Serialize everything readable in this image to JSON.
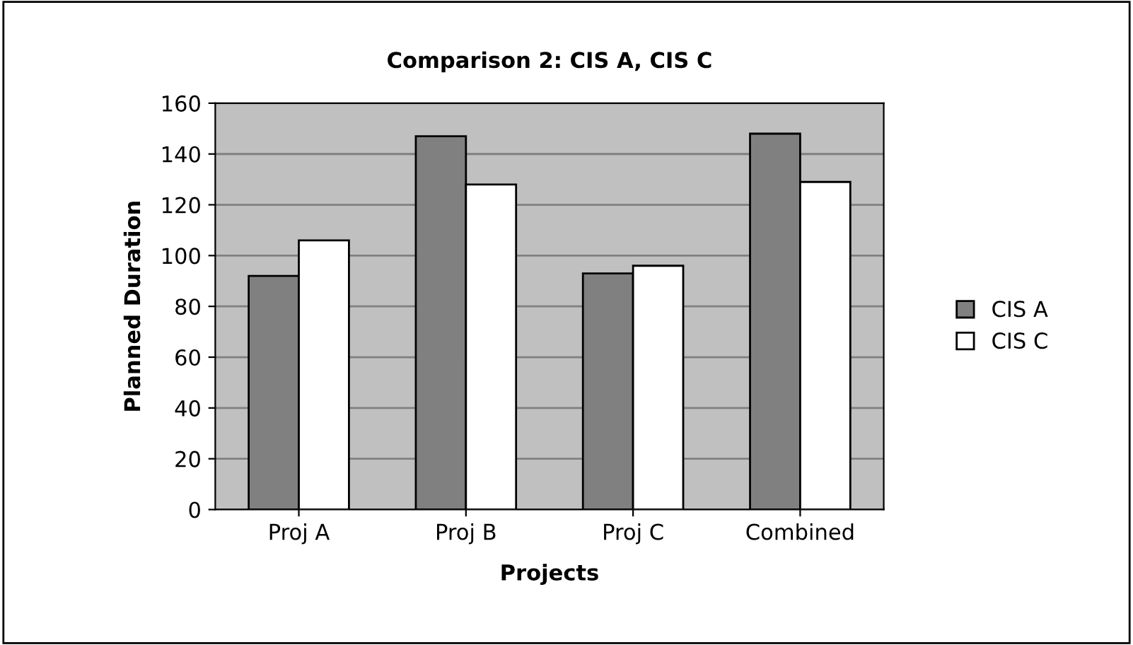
{
  "chart_data": {
    "type": "bar",
    "title": "Comparison 2: CIS A, CIS C",
    "xlabel": "Projects",
    "ylabel": "Planned Duration",
    "categories": [
      "Proj A",
      "Proj B",
      "Proj C",
      "Combined"
    ],
    "series": [
      {
        "name": "CIS A",
        "color": "#808080",
        "values": [
          92,
          147,
          93,
          148
        ]
      },
      {
        "name": "CIS C",
        "color": "#ffffff",
        "values": [
          106,
          128,
          96,
          129
        ]
      }
    ],
    "ylim": [
      0,
      160
    ],
    "yticks": [
      0,
      20,
      40,
      60,
      80,
      100,
      120,
      140,
      160
    ],
    "grid": "y",
    "legend": "right"
  }
}
